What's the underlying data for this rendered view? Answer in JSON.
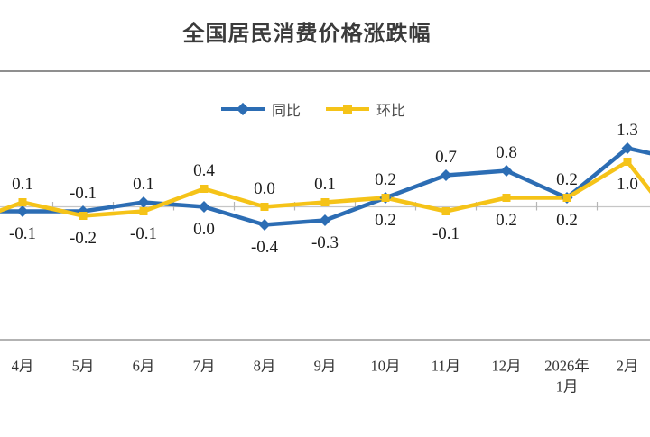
{
  "title": "全国居民消费价格涨跌幅",
  "colors": {
    "title_text": "#3B3B3B",
    "legend_text": "#4A4A4A",
    "data_label": "#1C1C1C",
    "axis_label": "#333333",
    "zero_line": "#C6C6C6",
    "boundary_tick": "#B5B5B5",
    "x_axis_line": "#A8A8A8",
    "top_border": "#8F8F8F"
  },
  "legend": {
    "items": [
      {
        "name": "同比",
        "marker": "diamond"
      },
      {
        "name": "环比",
        "marker": "square"
      }
    ]
  },
  "chart_data": {
    "type": "line",
    "title": "全国居民消费价格涨跌幅",
    "categories": [
      "4月",
      "5月",
      "6月",
      "7月",
      "8月",
      "9月",
      "10月",
      "11月",
      "12月",
      "2026年\n1月",
      "2月"
    ],
    "series": [
      {
        "name": "同比",
        "color": "#2C6DB4",
        "marker": "diamond",
        "values": [
          -0.1,
          -0.1,
          0.1,
          0.0,
          -0.4,
          -0.3,
          0.2,
          0.7,
          0.8,
          0.2,
          1.3
        ]
      },
      {
        "name": "环比",
        "color": "#F5C318",
        "marker": "square",
        "values": [
          0.1,
          -0.2,
          -0.1,
          0.4,
          0.0,
          0.1,
          0.2,
          -0.1,
          0.2,
          0.2,
          1.0
        ]
      }
    ],
    "offscreen_edge_values": {
      "left": [
        -0.1,
        -0.4
      ],
      "right": [
        1.0,
        -0.7
      ]
    },
    "ylim": [
      -3,
      3
    ],
    "grid": "zero-line-only",
    "legend_position": "top-center",
    "data_labels": "one-decimal-above-max-below-min"
  }
}
